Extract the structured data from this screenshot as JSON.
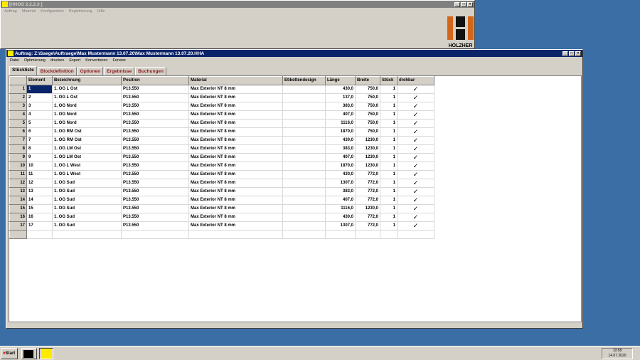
{
  "app": {
    "title": "[HHOS 2.2.2.3 ]",
    "menu": [
      "Auftrag",
      "Material",
      "Konfiguration",
      "Registrierung",
      "Hilfe"
    ],
    "logo_text": "HOLZHER"
  },
  "doc": {
    "title": "Auftrag: Z:\\Saege\\Auftraege\\Max Mustermann 13.07.20\\Max Mustermann 13.07.20.HHA",
    "menu": [
      "Datei",
      "Optimierung",
      "drucken",
      "Export",
      "Konvertieren",
      "Fenster"
    ],
    "tabs": [
      "Stückliste",
      "Blockdefinition",
      "Optionen",
      "Ergebnisse",
      "Buchungen"
    ],
    "columns": [
      "Element",
      "Bezeichnung",
      "Position",
      "Material",
      "Etikettendesign",
      "Länge",
      "Breite",
      "Stück",
      "drehbar"
    ],
    "rows": [
      [
        "1",
        "1. OG L Ost",
        "P13.550",
        "Max Exterior NT 8 mm",
        "",
        "430,0",
        "750,0",
        "1",
        "✓"
      ],
      [
        "2",
        "1. OG L Ost",
        "P13.550",
        "Max Exterior NT 8 mm",
        "",
        "137,0",
        "750,0",
        "1",
        "✓"
      ],
      [
        "3",
        "1. OG Nord",
        "P13.550",
        "Max Exterior NT 8 mm",
        "",
        "383,0",
        "750,0",
        "1",
        "✓"
      ],
      [
        "4",
        "1. OG Nord",
        "P13.550",
        "Max Exterior NT 8 mm",
        "",
        "407,0",
        "750,0",
        "1",
        "✓"
      ],
      [
        "5",
        "1. OG Nord",
        "P13.550",
        "Max Exterior NT 8 mm",
        "",
        "1116,0",
        "750,0",
        "1",
        "✓"
      ],
      [
        "6",
        "1. OG RM Ost",
        "P13.550",
        "Max Exterior NT 8 mm",
        "",
        "1870,0",
        "750,0",
        "1",
        "✓"
      ],
      [
        "7",
        "1. OG RM Ost",
        "P13.550",
        "Max Exterior NT 8 mm",
        "",
        "430,0",
        "1230,0",
        "1",
        "✓"
      ],
      [
        "8",
        "1. OG LM Ost",
        "P13.550",
        "Max Exterior NT 8 mm",
        "",
        "383,0",
        "1230,0",
        "1",
        "✓"
      ],
      [
        "9",
        "1. OG LM Ost",
        "P13.550",
        "Max Exterior NT 8 mm",
        "",
        "407,0",
        "1230,0",
        "1",
        "✓"
      ],
      [
        "10",
        "1. OG L West",
        "P13.550",
        "Max Exterior NT 8 mm",
        "",
        "1870,0",
        "1230,0",
        "1",
        "✓"
      ],
      [
        "11",
        "1. OG L West",
        "P13.550",
        "Max Exterior NT 8 mm",
        "",
        "430,0",
        "772,0",
        "1",
        "✓"
      ],
      [
        "12",
        "1. OG Sud",
        "P13.550",
        "Max Exterior NT 8 mm",
        "",
        "1307,0",
        "772,0",
        "1",
        "✓"
      ],
      [
        "13",
        "1. OG Sud",
        "P13.550",
        "Max Exterior NT 8 mm",
        "",
        "383,0",
        "772,0",
        "1",
        "✓"
      ],
      [
        "14",
        "1. OG Sud",
        "P13.550",
        "Max Exterior NT 8 mm",
        "",
        "407,0",
        "772,0",
        "1",
        "✓"
      ],
      [
        "15",
        "1. OG Sud",
        "P13.550",
        "Max Exterior NT 8 mm",
        "",
        "1116,0",
        "1230,0",
        "1",
        "✓"
      ],
      [
        "16",
        "1. OG Sud",
        "P13.550",
        "Max Exterior NT 8 mm",
        "",
        "430,0",
        "772,0",
        "1",
        "✓"
      ],
      [
        "17",
        "1. OG Sud",
        "P13.550",
        "Max Exterior NT 8 mm",
        "",
        "1307,0",
        "772,0",
        "1",
        "✓"
      ]
    ]
  },
  "taskbar": {
    "start": "Start",
    "time": "10:58",
    "date": "14.07.2020"
  }
}
